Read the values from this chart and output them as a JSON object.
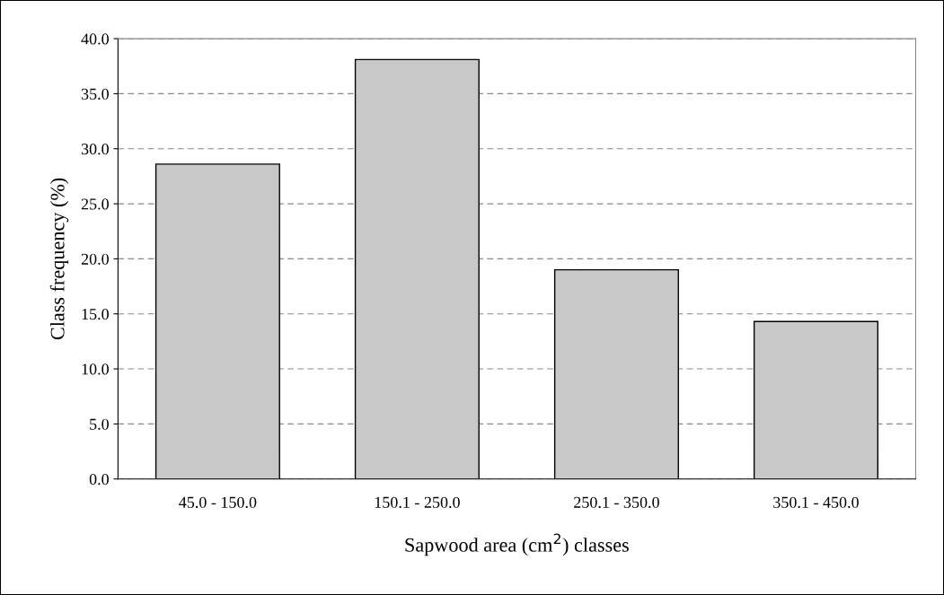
{
  "chart_data": {
    "type": "bar",
    "xlabel": "Sapwood area (cm$^{2}$) classes",
    "ylabel": "Class frequency (%)",
    "categories": [
      "45.0 - 150.0",
      "150.1 - 250.0",
      "250.1 - 350.0",
      "350.1 - 450.0"
    ],
    "values": [
      28.6,
      38.1,
      19.0,
      14.3
    ],
    "color": "#c8c8c8",
    "ylim": [
      0,
      40
    ],
    "yticks": [
      {
        "value": 0,
        "label": "0.0"
      },
      {
        "value": 5,
        "label": "5.0"
      },
      {
        "value": 10,
        "label": "10.0"
      },
      {
        "value": 15,
        "label": "15.0"
      },
      {
        "value": 20,
        "label": "20.0"
      },
      {
        "value": 25,
        "label": "25.0"
      },
      {
        "value": 30,
        "label": "30.0"
      },
      {
        "value": 35,
        "label": "35.0"
      },
      {
        "value": 40,
        "label": "40.0"
      }
    ],
    "grid": "y",
    "legend": false
  }
}
